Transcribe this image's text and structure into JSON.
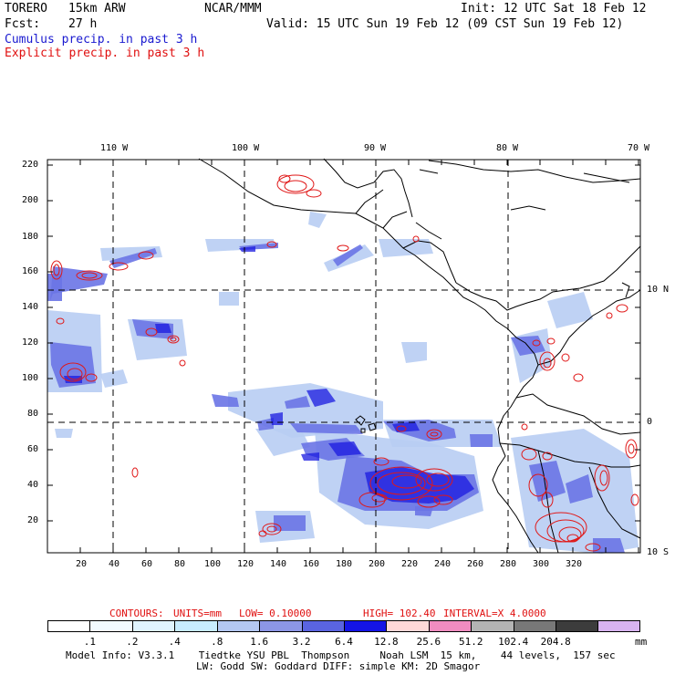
{
  "header": {
    "model": "TORERO",
    "resolution": "15km ARW",
    "org": "NCAR/MMM",
    "init": "Init: 12 UTC Sat 18 Feb 12",
    "fcst_label": "Fcst:",
    "fcst_value": "27 h",
    "valid": "Valid: 15 UTC Sun 19 Feb 12 (09 CST Sun 19 Feb 12)",
    "legend_cumulus": "Cumulus precip. in past 3 h",
    "legend_explicit": "Explicit precip. in past 3 h"
  },
  "colors": {
    "cumulus_text": "#1a1ad0",
    "explicit_text": "#e01010",
    "contour": "#e01818",
    "frame": "#000000"
  },
  "top_lon_labels": [
    "110 W",
    "100 W",
    "90 W",
    "80 W",
    "70 W"
  ],
  "right_lat_labels": [
    "10 N",
    "0",
    "10 S"
  ],
  "y_ticks": [
    "220",
    "200",
    "180",
    "160",
    "140",
    "120",
    "100",
    "80",
    "60",
    "40",
    "20"
  ],
  "x_ticks": [
    "20",
    "40",
    "60",
    "80",
    "100",
    "120",
    "140",
    "160",
    "180",
    "200",
    "220",
    "240",
    "260",
    "280",
    "300",
    "320"
  ],
  "contours_info": {
    "contours": "CONTOURS:",
    "units": "UNITS=mm",
    "low": "LOW= 0.10000",
    "high": "HIGH= 102.40",
    "interval": "INTERVAL=X 4.0000"
  },
  "colorbar": {
    "colors": [
      "#ffffff",
      "#f2fbff",
      "#e0f4ff",
      "#c8ecff",
      "#b4c8f2",
      "#8c96e6",
      "#5a64e0",
      "#1414e6",
      "#ffd8d8",
      "#f08cc0",
      "#b4b4b4",
      "#787878",
      "#3c3c3c",
      "#d8b4f0"
    ],
    "labels": [
      ".1",
      ".2",
      ".4",
      ".8",
      "1.6",
      "3.2",
      "6.4",
      "12.8",
      "25.6",
      "51.2",
      "102.4",
      "204.8"
    ],
    "unit": "mm"
  },
  "footer": {
    "line1": "Model Info: V3.3.1    Tiedtke YSU PBL  Thompson     Noah LSM  15 km,    44 levels,  157 sec",
    "line2": "LW: Godd SW: Goddard DIFF: simple KM: 2D Smagor"
  }
}
